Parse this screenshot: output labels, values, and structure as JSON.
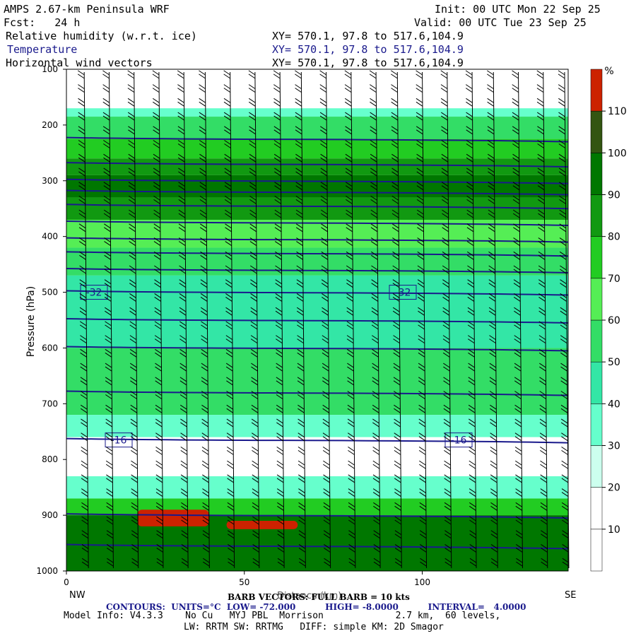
{
  "header": {
    "title_left": "AMPS 2.67-km Peninsula WRF",
    "fcst": "Fcst:   24 h",
    "init": "Init: 00 UTC Mon 22 Sep 25",
    "valid": "Valid: 00 UTC Tue 23 Sep 25",
    "fields": [
      {
        "name": "Relative humidity (w.r.t. ice)",
        "xy": "XY= 570.1, 97.8 to 517.6,104.9"
      },
      {
        "name": "Temperature",
        "xy": "XY= 570.1, 97.8 to 517.6,104.9"
      },
      {
        "name": "Horizontal wind vectors",
        "xy": "XY= 570.1, 97.8 to 517.6,104.9"
      }
    ]
  },
  "axes": {
    "ylabel": "Pressure (hPa)",
    "xlabel": "Distance (km)",
    "left_end": "NW",
    "right_end": "SE"
  },
  "footer": {
    "barb": "BARB VECTORS: FULL BARB = 10 kts",
    "contours": "CONTOURS:  UNITS=°C  LOW= -72.000          HIGH= -8.0000          INTERVAL=   4.0000",
    "model_info": "Model Info: V4.3.3    No Cu   MYJ PBL  Morrison             2.7 km,  60 levels,",
    "model_info2": "LW: RRTM SW: RRTMG   DIFF: simple KM: 2D Smagor"
  },
  "colorbar": {
    "unit": "%",
    "levels": [
      10,
      20,
      30,
      40,
      50,
      60,
      70,
      80,
      90,
      100,
      110
    ],
    "colors": [
      "#ffffff",
      "#ffffff",
      "#ccffee",
      "#66ffcc",
      "#33e6a6",
      "#33dd66",
      "#55ee55",
      "#22cc22",
      "#119911",
      "#007700",
      "#335511",
      "#cc2200"
    ]
  },
  "chart_data": {
    "type": "heatmap",
    "title": "Relative humidity (w.r.t. ice), Temperature, Horizontal wind vectors",
    "xlabel": "Distance (km)",
    "ylabel": "Pressure (hPa)",
    "xlim": [
      0,
      141
    ],
    "ylim": [
      1000,
      100
    ],
    "x_ticks": [
      0,
      50,
      100
    ],
    "y_ticks": [
      100,
      200,
      300,
      400,
      500,
      600,
      700,
      800,
      900,
      1000
    ],
    "rh_bands": [
      {
        "p_top": 100,
        "p_bot": 170,
        "rh": 0
      },
      {
        "p_top": 170,
        "p_bot": 185,
        "rh": 35
      },
      {
        "p_top": 185,
        "p_bot": 225,
        "rh": 55
      },
      {
        "p_top": 225,
        "p_bot": 260,
        "rh": 75
      },
      {
        "p_top": 260,
        "p_bot": 290,
        "rh": 85
      },
      {
        "p_top": 290,
        "p_bot": 330,
        "rh": 95
      },
      {
        "p_top": 330,
        "p_bot": 370,
        "rh": 88
      },
      {
        "p_top": 370,
        "p_bot": 420,
        "rh": 65
      },
      {
        "p_top": 420,
        "p_bot": 470,
        "rh": 50
      },
      {
        "p_top": 470,
        "p_bot": 600,
        "rh": 45
      },
      {
        "p_top": 600,
        "p_bot": 720,
        "rh": 55
      },
      {
        "p_top": 720,
        "p_bot": 760,
        "rh": 35
      },
      {
        "p_top": 760,
        "p_bot": 830,
        "rh": 0
      },
      {
        "p_top": 830,
        "p_bot": 870,
        "rh": 35
      },
      {
        "p_top": 870,
        "p_bot": 900,
        "rh": 75
      },
      {
        "p_top": 900,
        "p_bot": 1000,
        "rh": 95
      }
    ],
    "rh_max_patches": [
      {
        "x0": 20,
        "x1": 40,
        "p_top": 890,
        "p_bot": 920,
        "rh": 112
      },
      {
        "x0": 45,
        "x1": 65,
        "p_top": 910,
        "p_bot": 925,
        "rh": 112
      }
    ],
    "temperature_contours": [
      {
        "label": "-32",
        "p": 500
      },
      {
        "label": "-16",
        "p": 765
      }
    ],
    "temperature_isotherms_p": [
      225,
      270,
      300,
      320,
      345,
      375,
      405,
      430,
      460,
      500,
      550,
      600,
      680,
      765,
      900,
      955
    ],
    "wind_barb_x": [
      5,
      12,
      19,
      26,
      33,
      39,
      46,
      53,
      60,
      66,
      73,
      80,
      87,
      93,
      100,
      107,
      114,
      120,
      127,
      134,
      140
    ]
  }
}
